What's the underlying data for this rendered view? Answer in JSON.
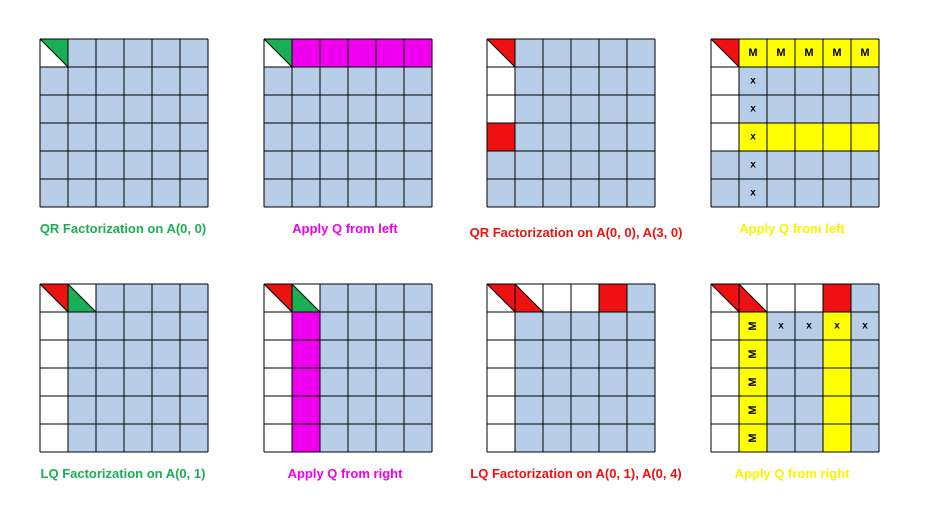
{
  "colors": {
    "blue": "#b7cde8",
    "white": "#ffffff",
    "green": "#1aae55",
    "magenta": "#ee00ee",
    "red": "#ee1111",
    "yellow": "#ffff00",
    "line": "#000000"
  },
  "grid_size": 6,
  "panels": [
    {
      "caption": "QR Factorization on A(0, 0)",
      "caption_color": "#1aae55",
      "cells": [
        {
          "r": 0,
          "c": 0,
          "type": "tri_tr",
          "color": "green"
        },
        {
          "r": 0,
          "c": 0,
          "type": "tri_bl",
          "color": "white"
        }
      ]
    },
    {
      "caption": "Apply Q from left",
      "caption_color": "#ee00ee",
      "cells": [
        {
          "r": 0,
          "c": 0,
          "type": "tri_tr",
          "color": "green"
        },
        {
          "r": 0,
          "c": 0,
          "type": "tri_bl",
          "color": "white"
        },
        {
          "r": 0,
          "c": 1,
          "type": "fill",
          "color": "magenta"
        },
        {
          "r": 0,
          "c": 2,
          "type": "fill",
          "color": "magenta"
        },
        {
          "r": 0,
          "c": 3,
          "type": "fill",
          "color": "magenta"
        },
        {
          "r": 0,
          "c": 4,
          "type": "fill",
          "color": "magenta"
        },
        {
          "r": 0,
          "c": 5,
          "type": "fill",
          "color": "magenta"
        }
      ]
    },
    {
      "caption": "QR Factorization on A(0, 0), A(3, 0)",
      "caption_color": "#ee1111",
      "cells": [
        {
          "r": 0,
          "c": 0,
          "type": "tri_tr",
          "color": "red"
        },
        {
          "r": 0,
          "c": 0,
          "type": "tri_bl",
          "color": "white"
        },
        {
          "r": 1,
          "c": 0,
          "type": "fill",
          "color": "white"
        },
        {
          "r": 2,
          "c": 0,
          "type": "fill",
          "color": "white"
        },
        {
          "r": 3,
          "c": 0,
          "type": "fill",
          "color": "red"
        }
      ]
    },
    {
      "caption": "Apply Q from left",
      "caption_color": "#f5f500",
      "cells": [
        {
          "r": 0,
          "c": 0,
          "type": "tri_tr",
          "color": "red"
        },
        {
          "r": 0,
          "c": 0,
          "type": "tri_bl",
          "color": "white"
        },
        {
          "r": 1,
          "c": 0,
          "type": "fill",
          "color": "white"
        },
        {
          "r": 2,
          "c": 0,
          "type": "fill",
          "color": "white"
        },
        {
          "r": 3,
          "c": 0,
          "type": "fill",
          "color": "white"
        },
        {
          "r": 0,
          "c": 1,
          "type": "fill",
          "color": "yellow",
          "mark": "M"
        },
        {
          "r": 0,
          "c": 2,
          "type": "fill",
          "color": "yellow",
          "mark": "M"
        },
        {
          "r": 0,
          "c": 3,
          "type": "fill",
          "color": "yellow",
          "mark": "M"
        },
        {
          "r": 0,
          "c": 4,
          "type": "fill",
          "color": "yellow",
          "mark": "M"
        },
        {
          "r": 0,
          "c": 5,
          "type": "fill",
          "color": "yellow",
          "mark": "M"
        },
        {
          "r": 1,
          "c": 1,
          "type": "fill",
          "color": "blue",
          "mark": "x"
        },
        {
          "r": 2,
          "c": 1,
          "type": "fill",
          "color": "blue",
          "mark": "x"
        },
        {
          "r": 3,
          "c": 1,
          "type": "fill",
          "color": "yellow",
          "mark": "x"
        },
        {
          "r": 3,
          "c": 2,
          "type": "fill",
          "color": "yellow"
        },
        {
          "r": 3,
          "c": 3,
          "type": "fill",
          "color": "yellow"
        },
        {
          "r": 3,
          "c": 4,
          "type": "fill",
          "color": "yellow"
        },
        {
          "r": 3,
          "c": 5,
          "type": "fill",
          "color": "yellow"
        },
        {
          "r": 4,
          "c": 1,
          "type": "fill",
          "color": "blue",
          "mark": "x"
        },
        {
          "r": 5,
          "c": 1,
          "type": "fill",
          "color": "blue",
          "mark": "x"
        }
      ]
    },
    {
      "caption": "LQ Factorization on A(0, 1)",
      "caption_color": "#1aae55",
      "cells": [
        {
          "r": 0,
          "c": 0,
          "type": "tri_tr",
          "color": "red"
        },
        {
          "r": 0,
          "c": 0,
          "type": "tri_bl",
          "color": "white"
        },
        {
          "r": 1,
          "c": 0,
          "type": "fill",
          "color": "white"
        },
        {
          "r": 2,
          "c": 0,
          "type": "fill",
          "color": "white"
        },
        {
          "r": 3,
          "c": 0,
          "type": "fill",
          "color": "white"
        },
        {
          "r": 4,
          "c": 0,
          "type": "fill",
          "color": "white"
        },
        {
          "r": 5,
          "c": 0,
          "type": "fill",
          "color": "white"
        },
        {
          "r": 0,
          "c": 1,
          "type": "tri_bl",
          "color": "green"
        },
        {
          "r": 0,
          "c": 1,
          "type": "tri_tr",
          "color": "white"
        }
      ]
    },
    {
      "caption": "Apply Q from right",
      "caption_color": "#ee00ee",
      "cells": [
        {
          "r": 0,
          "c": 0,
          "type": "tri_tr",
          "color": "red"
        },
        {
          "r": 0,
          "c": 0,
          "type": "tri_bl",
          "color": "white"
        },
        {
          "r": 1,
          "c": 0,
          "type": "fill",
          "color": "white"
        },
        {
          "r": 2,
          "c": 0,
          "type": "fill",
          "color": "white"
        },
        {
          "r": 3,
          "c": 0,
          "type": "fill",
          "color": "white"
        },
        {
          "r": 4,
          "c": 0,
          "type": "fill",
          "color": "white"
        },
        {
          "r": 5,
          "c": 0,
          "type": "fill",
          "color": "white"
        },
        {
          "r": 0,
          "c": 1,
          "type": "tri_bl",
          "color": "green"
        },
        {
          "r": 0,
          "c": 1,
          "type": "tri_tr",
          "color": "white"
        },
        {
          "r": 1,
          "c": 1,
          "type": "fill",
          "color": "magenta"
        },
        {
          "r": 2,
          "c": 1,
          "type": "fill",
          "color": "magenta"
        },
        {
          "r": 3,
          "c": 1,
          "type": "fill",
          "color": "magenta"
        },
        {
          "r": 4,
          "c": 1,
          "type": "fill",
          "color": "magenta"
        },
        {
          "r": 5,
          "c": 1,
          "type": "fill",
          "color": "magenta"
        }
      ]
    },
    {
      "caption": "LQ Factorization on A(0, 1), A(0, 4)",
      "caption_color": "#ee1111",
      "cells": [
        {
          "r": 0,
          "c": 0,
          "type": "tri_tr",
          "color": "red"
        },
        {
          "r": 0,
          "c": 0,
          "type": "tri_bl",
          "color": "white"
        },
        {
          "r": 1,
          "c": 0,
          "type": "fill",
          "color": "white"
        },
        {
          "r": 2,
          "c": 0,
          "type": "fill",
          "color": "white"
        },
        {
          "r": 3,
          "c": 0,
          "type": "fill",
          "color": "white"
        },
        {
          "r": 4,
          "c": 0,
          "type": "fill",
          "color": "white"
        },
        {
          "r": 5,
          "c": 0,
          "type": "fill",
          "color": "white"
        },
        {
          "r": 0,
          "c": 1,
          "type": "tri_bl",
          "color": "red"
        },
        {
          "r": 0,
          "c": 1,
          "type": "tri_tr",
          "color": "white"
        },
        {
          "r": 0,
          "c": 2,
          "type": "fill",
          "color": "white"
        },
        {
          "r": 0,
          "c": 3,
          "type": "fill",
          "color": "white"
        },
        {
          "r": 0,
          "c": 4,
          "type": "fill",
          "color": "red"
        }
      ]
    },
    {
      "caption": "Apply Q from right",
      "caption_color": "#f5f500",
      "cells": [
        {
          "r": 0,
          "c": 0,
          "type": "tri_tr",
          "color": "red"
        },
        {
          "r": 0,
          "c": 0,
          "type": "tri_bl",
          "color": "white"
        },
        {
          "r": 1,
          "c": 0,
          "type": "fill",
          "color": "white"
        },
        {
          "r": 2,
          "c": 0,
          "type": "fill",
          "color": "white"
        },
        {
          "r": 3,
          "c": 0,
          "type": "fill",
          "color": "white"
        },
        {
          "r": 4,
          "c": 0,
          "type": "fill",
          "color": "white"
        },
        {
          "r": 5,
          "c": 0,
          "type": "fill",
          "color": "white"
        },
        {
          "r": 0,
          "c": 1,
          "type": "tri_bl",
          "color": "red"
        },
        {
          "r": 0,
          "c": 1,
          "type": "tri_tr",
          "color": "white"
        },
        {
          "r": 0,
          "c": 2,
          "type": "fill",
          "color": "white"
        },
        {
          "r": 0,
          "c": 3,
          "type": "fill",
          "color": "white"
        },
        {
          "r": 0,
          "c": 4,
          "type": "fill",
          "color": "red"
        },
        {
          "r": 1,
          "c": 1,
          "type": "fill",
          "color": "yellow",
          "mark": "M",
          "rot": true
        },
        {
          "r": 2,
          "c": 1,
          "type": "fill",
          "color": "yellow",
          "mark": "M",
          "rot": true
        },
        {
          "r": 3,
          "c": 1,
          "type": "fill",
          "color": "yellow",
          "mark": "M",
          "rot": true
        },
        {
          "r": 4,
          "c": 1,
          "type": "fill",
          "color": "yellow",
          "mark": "M",
          "rot": true
        },
        {
          "r": 5,
          "c": 1,
          "type": "fill",
          "color": "yellow",
          "mark": "M",
          "rot": true
        },
        {
          "r": 1,
          "c": 2,
          "type": "fill",
          "color": "blue",
          "mark": "x"
        },
        {
          "r": 1,
          "c": 3,
          "type": "fill",
          "color": "blue",
          "mark": "x"
        },
        {
          "r": 1,
          "c": 4,
          "type": "fill",
          "color": "yellow",
          "mark": "x"
        },
        {
          "r": 2,
          "c": 4,
          "type": "fill",
          "color": "yellow"
        },
        {
          "r": 3,
          "c": 4,
          "type": "fill",
          "color": "yellow"
        },
        {
          "r": 4,
          "c": 4,
          "type": "fill",
          "color": "yellow"
        },
        {
          "r": 5,
          "c": 4,
          "type": "fill",
          "color": "yellow"
        },
        {
          "r": 1,
          "c": 5,
          "type": "fill",
          "color": "blue",
          "mark": "x"
        }
      ]
    }
  ]
}
